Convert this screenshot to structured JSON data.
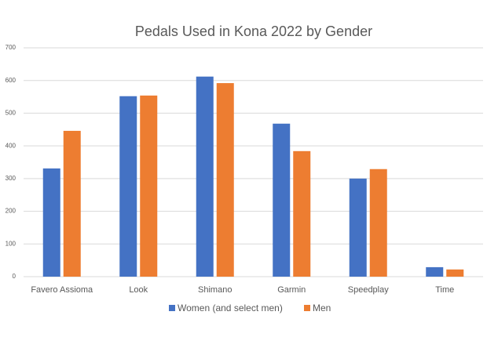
{
  "chart_data": {
    "type": "bar",
    "title": "Pedals Used in Kona 2022 by Gender",
    "categories": [
      "Favero Assioma",
      "Look",
      "Shimano",
      "Garmin",
      "Speedplay",
      "Time"
    ],
    "series": [
      {
        "name": "Women (and select men)",
        "color": "#4472c4",
        "values": [
          331,
          552,
          612,
          468,
          300,
          29
        ]
      },
      {
        "name": "Men",
        "color": "#ed7d31",
        "values": [
          446,
          554,
          592,
          384,
          329,
          22
        ]
      }
    ],
    "ylim": [
      0,
      700
    ],
    "yticks": [
      0,
      100,
      200,
      300,
      400,
      500,
      600,
      700
    ],
    "grid": true,
    "legend": "bottom"
  }
}
